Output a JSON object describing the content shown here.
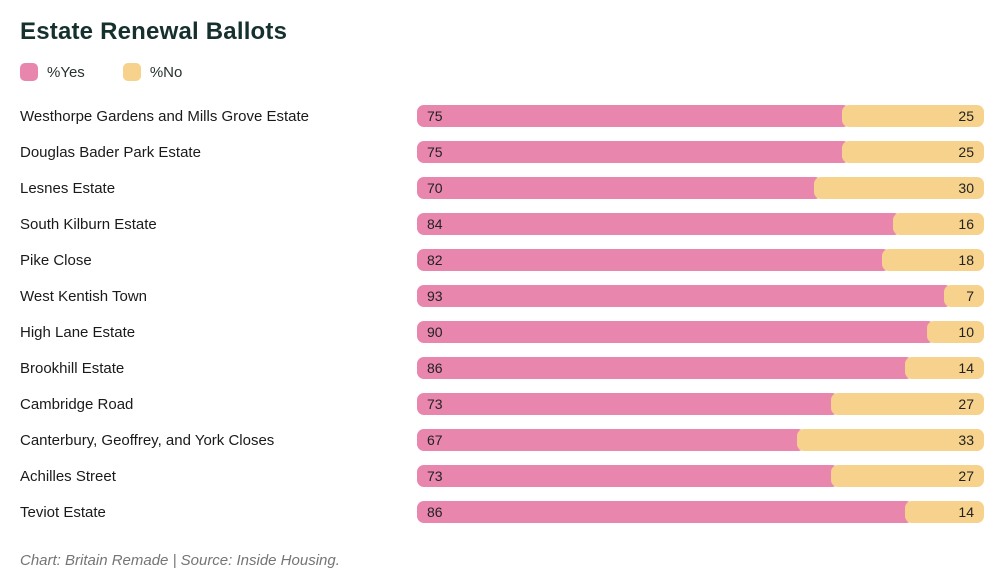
{
  "chart_data": {
    "type": "bar",
    "orientation": "horizontal",
    "stacked": true,
    "title": "Estate Renewal Ballots",
    "footer": "Chart: Britain Remade | Source: Inside Housing.",
    "xlim": [
      0,
      100
    ],
    "grid": false,
    "legend_position": "top-left",
    "legend": [
      {
        "label": "%Yes",
        "color": "#E886AE"
      },
      {
        "label": "%No",
        "color": "#F6D28C"
      }
    ],
    "categories": [
      "Westhorpe Gardens and Mills Grove Estate",
      "Douglas Bader Park Estate",
      "Lesnes Estate",
      "South Kilburn Estate",
      "Pike Close",
      "West Kentish Town",
      "High Lane Estate",
      "Brookhill Estate",
      "Cambridge Road",
      "Canterbury, Geoffrey, and York Closes",
      "Achilles Street",
      "Teviot Estate"
    ],
    "series": [
      {
        "name": "%Yes",
        "color": "#E886AE",
        "values": [
          75,
          75,
          70,
          84,
          82,
          93,
          90,
          86,
          73,
          67,
          73,
          86
        ]
      },
      {
        "name": "%No",
        "color": "#F6D28C",
        "values": [
          25,
          25,
          30,
          16,
          18,
          7,
          10,
          14,
          27,
          33,
          27,
          14
        ]
      }
    ]
  }
}
